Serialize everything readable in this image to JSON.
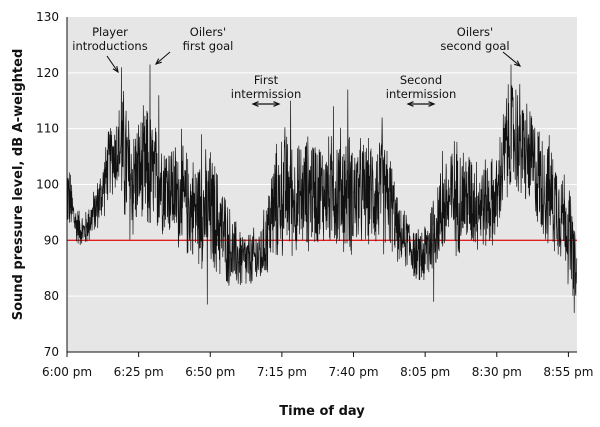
{
  "chart_data": {
    "type": "line",
    "title": "",
    "xlabel": "Time of day",
    "ylabel": "Sound pressure level, dB A-weighted",
    "ylim": [
      70,
      130
    ],
    "yticks": [
      70,
      80,
      90,
      100,
      110,
      120,
      130
    ],
    "xlim": [
      0,
      178
    ],
    "xticks": [
      {
        "value": 0,
        "label": "6:00 pm"
      },
      {
        "value": 25,
        "label": "6:25 pm"
      },
      {
        "value": 50,
        "label": "6:50 pm"
      },
      {
        "value": 75,
        "label": "7:15 pm"
      },
      {
        "value": 100,
        "label": "7:40 pm"
      },
      {
        "value": 125,
        "label": "8:05 pm"
      },
      {
        "value": 150,
        "label": "8:30 pm"
      },
      {
        "value": 175,
        "label": "8:55 pm"
      }
    ],
    "grid": true,
    "reference_line": {
      "y": 90,
      "color": "#e02020"
    },
    "colors": {
      "plot_bg": "#e6e6e6",
      "series": "#111111",
      "grid": "#ffffff"
    },
    "annotations": [
      {
        "lines": [
          "Player",
          "introductions"
        ],
        "x": 18,
        "y": 121,
        "arrow": "down-right"
      },
      {
        "lines": [
          "Oilers'",
          "first goal"
        ],
        "x": 29,
        "y": 121.5,
        "arrow": "down-left"
      },
      {
        "lines": [
          "First",
          "intermission"
        ],
        "x": 66,
        "y": 112,
        "arrow": "both"
      },
      {
        "lines": [
          "Second",
          "intermission"
        ],
        "x": 125,
        "y": 112,
        "arrow": "both"
      },
      {
        "lines": [
          "Oilers'",
          "second goal"
        ],
        "x": 161,
        "y": 121,
        "arrow": "down-right"
      }
    ],
    "series": [
      {
        "envelope": [
          [
            0,
            91,
            107
          ],
          [
            3,
            89,
            97
          ],
          [
            6,
            88,
            95
          ],
          [
            9,
            90,
            99
          ],
          [
            12,
            92,
            104
          ],
          [
            15,
            97,
            112
          ],
          [
            18,
            98,
            115
          ],
          [
            20,
            90,
            120
          ],
          [
            22,
            86,
            114
          ],
          [
            25,
            92,
            113
          ],
          [
            28,
            88,
            116
          ],
          [
            31,
            90,
            112
          ],
          [
            35,
            90,
            110
          ],
          [
            40,
            86,
            108
          ],
          [
            45,
            85,
            106
          ],
          [
            50,
            82,
            108
          ],
          [
            54,
            82,
            102
          ],
          [
            58,
            80,
            95
          ],
          [
            63,
            80,
            92
          ],
          [
            68,
            81,
            94
          ],
          [
            72,
            84,
            107
          ],
          [
            76,
            86,
            112
          ],
          [
            80,
            86,
            108
          ],
          [
            85,
            87,
            111
          ],
          [
            90,
            88,
            109
          ],
          [
            95,
            86,
            112
          ],
          [
            100,
            86,
            110
          ],
          [
            105,
            88,
            109
          ],
          [
            110,
            86,
            111
          ],
          [
            113,
            87,
            107
          ],
          [
            116,
            85,
            96
          ],
          [
            119,
            84,
            96
          ],
          [
            122,
            82,
            92
          ],
          [
            125,
            80,
            95
          ],
          [
            128,
            83,
            101
          ],
          [
            131,
            86,
            105
          ],
          [
            135,
            86,
            110
          ],
          [
            140,
            87,
            108
          ],
          [
            145,
            87,
            106
          ],
          [
            150,
            88,
            106
          ],
          [
            153,
            95,
            118
          ],
          [
            156,
            97,
            121
          ],
          [
            159,
            95,
            118
          ],
          [
            162,
            93,
            115
          ],
          [
            165,
            90,
            112
          ],
          [
            168,
            87,
            110
          ],
          [
            171,
            86,
            107
          ],
          [
            174,
            84,
            104
          ],
          [
            176,
            78,
            100
          ],
          [
            178,
            77,
            88
          ]
        ],
        "spikes": [
          [
            19,
            121
          ],
          [
            29,
            121.5
          ],
          [
            32,
            116
          ],
          [
            40,
            110
          ],
          [
            47,
            109
          ],
          [
            78,
            115
          ],
          [
            93,
            114
          ],
          [
            98,
            117
          ],
          [
            110,
            112
          ],
          [
            131,
            106
          ],
          [
            155,
            121.5
          ],
          [
            158,
            118
          ],
          [
            49,
            78.5
          ],
          [
            128,
            79
          ],
          [
            177,
            77
          ]
        ]
      }
    ]
  }
}
